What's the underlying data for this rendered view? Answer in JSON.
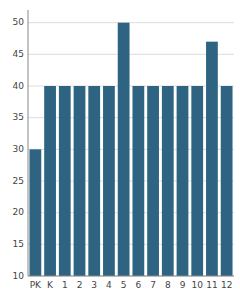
{
  "chart_data": {
    "type": "bar",
    "categories": [
      "PK",
      "K",
      "1",
      "2",
      "3",
      "4",
      "5",
      "6",
      "7",
      "8",
      "9",
      "10",
      "11",
      "12"
    ],
    "values": [
      30,
      40,
      40,
      40,
      40,
      40,
      50,
      40,
      40,
      40,
      40,
      40,
      47,
      40
    ],
    "color": "#2e6482",
    "ylim": [
      10,
      52
    ],
    "yticks": [
      10,
      15,
      20,
      25,
      30,
      35,
      40,
      45,
      50
    ],
    "grid": true
  }
}
